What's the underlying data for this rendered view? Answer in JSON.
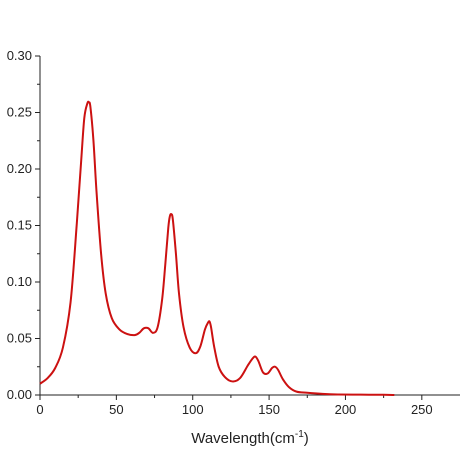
{
  "chart_data": {
    "type": "line",
    "title": "",
    "xlabel": "Wavelength(cm",
    "xlabel_superscript": "-1",
    "xlabel_close": ")",
    "ylabel": "",
    "xlim": [
      0,
      275
    ],
    "ylim": [
      0,
      0.3
    ],
    "x_ticks": [
      0,
      50,
      100,
      150,
      200,
      250
    ],
    "x_tick_labels": [
      "0",
      "50",
      "100",
      "150",
      "200",
      "250"
    ],
    "y_ticks": [
      0,
      0.05,
      0.1,
      0.15,
      0.2,
      0.25,
      0.3
    ],
    "y_tick_labels": [
      "0.00",
      "0.05",
      "0.10",
      "0.15",
      "0.20",
      "0.25",
      "0.30"
    ],
    "grid": false,
    "legend": "none",
    "line_color": "#cc1111",
    "series": [
      {
        "x": [
          0,
          5,
          10,
          15,
          20,
          24,
          27,
          29,
          31,
          32,
          33,
          35,
          37,
          40,
          43,
          47,
          52,
          57,
          62,
          65,
          68,
          71,
          74,
          77,
          80,
          82,
          84,
          85,
          86,
          87,
          89,
          91,
          94,
          98,
          102,
          105,
          108,
          110,
          111,
          112,
          114,
          117,
          121,
          126,
          131,
          136,
          139,
          141,
          143,
          146,
          149,
          152,
          154,
          156,
          159,
          163,
          168,
          175,
          185,
          195,
          210,
          225,
          232
        ],
        "y": [
          0.01,
          0.015,
          0.024,
          0.042,
          0.082,
          0.15,
          0.208,
          0.245,
          0.258,
          0.259,
          0.255,
          0.225,
          0.18,
          0.125,
          0.09,
          0.068,
          0.058,
          0.054,
          0.053,
          0.055,
          0.059,
          0.059,
          0.055,
          0.06,
          0.085,
          0.115,
          0.148,
          0.158,
          0.16,
          0.155,
          0.125,
          0.09,
          0.06,
          0.042,
          0.037,
          0.043,
          0.058,
          0.064,
          0.065,
          0.06,
          0.043,
          0.025,
          0.016,
          0.012,
          0.015,
          0.026,
          0.032,
          0.034,
          0.03,
          0.02,
          0.019,
          0.024,
          0.025,
          0.022,
          0.014,
          0.007,
          0.003,
          0.002,
          0.001,
          0.0005,
          0.0003,
          0.0002,
          0.0
        ]
      }
    ]
  }
}
